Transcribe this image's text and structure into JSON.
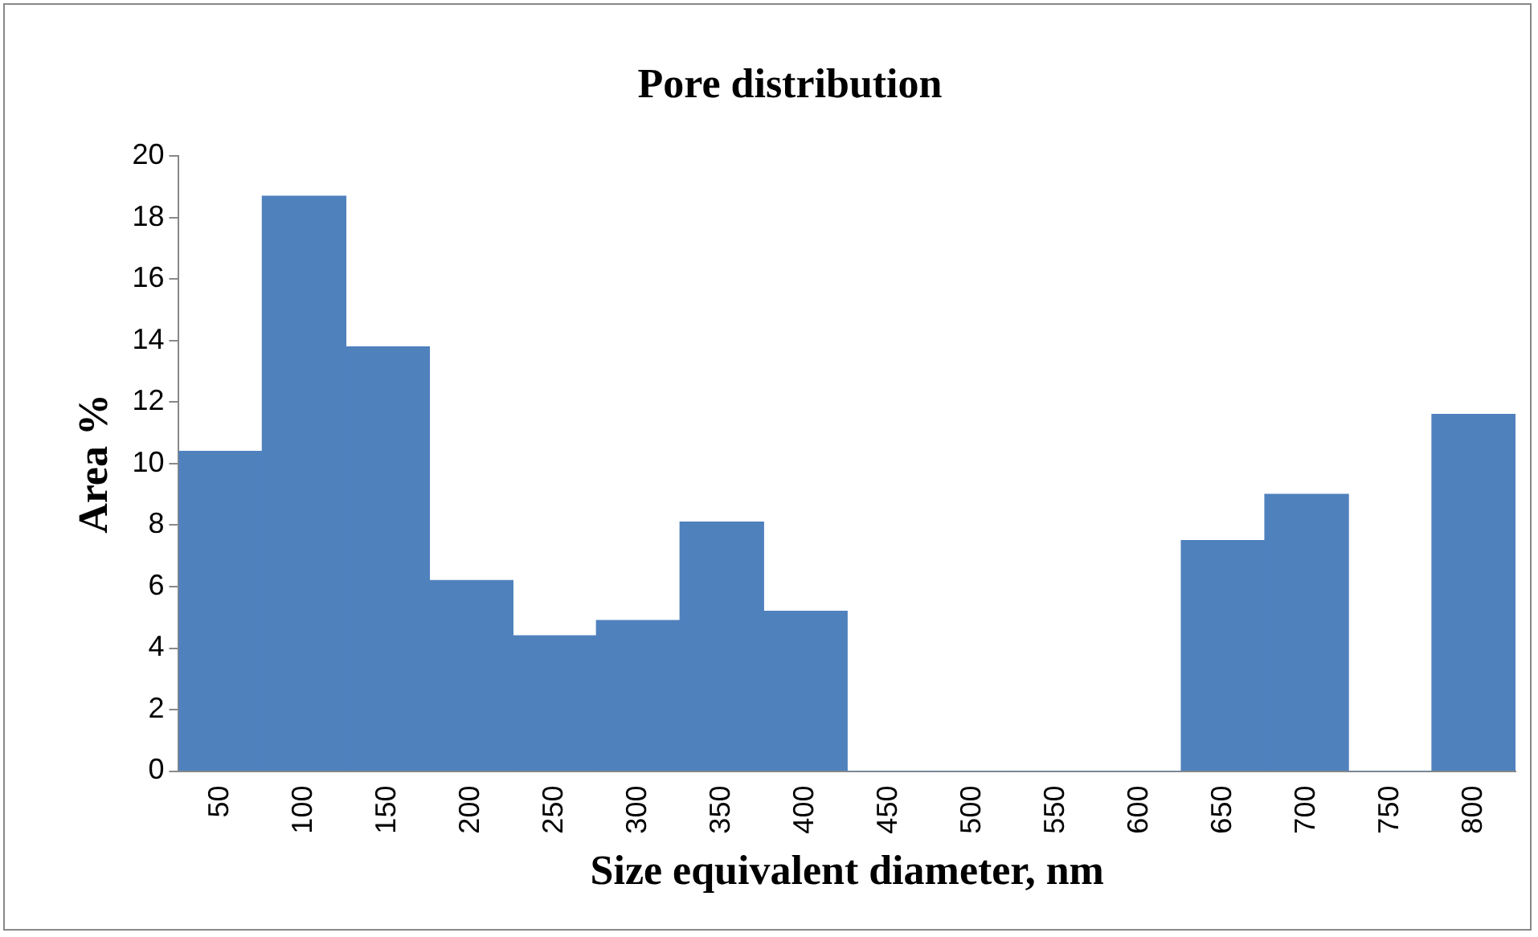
{
  "chart_data": {
    "type": "bar",
    "title": "Pore distribution",
    "xlabel": "Size equivalent diameter, nm",
    "ylabel": "Area %",
    "categories": [
      "50",
      "100",
      "150",
      "200",
      "250",
      "300",
      "350",
      "400",
      "450",
      "500",
      "550",
      "600",
      "650",
      "700",
      "750",
      "800"
    ],
    "values": [
      10.4,
      18.7,
      13.8,
      6.2,
      4.4,
      4.9,
      8.1,
      5.2,
      0,
      0,
      0,
      0,
      7.5,
      9.0,
      0,
      11.6
    ],
    "color": "#4f81bd",
    "ylim": [
      0,
      20
    ],
    "yticks": [
      0,
      2,
      4,
      6,
      8,
      10,
      12,
      14,
      16,
      18,
      20
    ],
    "grid": false,
    "legend": false
  }
}
